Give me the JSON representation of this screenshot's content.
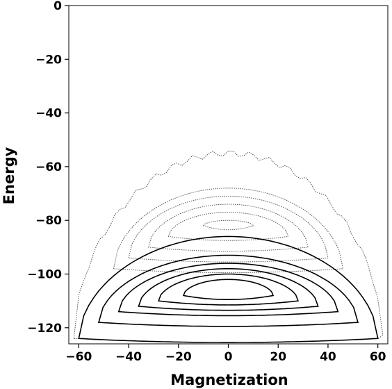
{
  "chart_data": {
    "type": "contour",
    "title": "",
    "xlabel": "Magnetization",
    "ylabel": "Energy",
    "xlim": [
      -64,
      64
    ],
    "ylim": [
      -126,
      0
    ],
    "x_ticks": [
      -60,
      -40,
      -20,
      0,
      20,
      40,
      60
    ],
    "y_ticks": [
      0,
      -20,
      -40,
      -60,
      -80,
      -100,
      -120
    ],
    "grid": false,
    "legend": "none",
    "colors": {
      "line": "#000000",
      "dotted": "#555555"
    },
    "series": [
      {
        "style": "dotted",
        "peak_energy": -55,
        "base_energy": -124,
        "half_width": 62
      },
      {
        "style": "dotted",
        "peak_energy": -68,
        "base_energy": -98,
        "half_width": 46
      },
      {
        "style": "dotted",
        "peak_energy": -71,
        "base_energy": -94,
        "half_width": 40
      },
      {
        "style": "dotted",
        "peak_energy": -74,
        "base_energy": -90,
        "half_width": 32
      },
      {
        "style": "dotted",
        "peak_energy": -77,
        "base_energy": -86,
        "half_width": 24
      },
      {
        "style": "dotted",
        "peak_energy": -80,
        "base_energy": -82,
        "half_width": 10
      },
      {
        "style": "solid",
        "peak_energy": -86,
        "base_energy": -124,
        "half_width": 60
      },
      {
        "style": "solid",
        "peak_energy": -93,
        "base_energy": -118,
        "half_width": 52
      },
      {
        "style": "solid",
        "peak_energy": -96,
        "base_energy": -114,
        "half_width": 44
      },
      {
        "style": "solid",
        "peak_energy": -98,
        "base_energy": -112,
        "half_width": 36
      },
      {
        "style": "solid",
        "peak_energy": -100,
        "base_energy": -110,
        "half_width": 28
      },
      {
        "style": "solid",
        "peak_energy": -102,
        "base_energy": -108,
        "half_width": 18
      }
    ]
  }
}
